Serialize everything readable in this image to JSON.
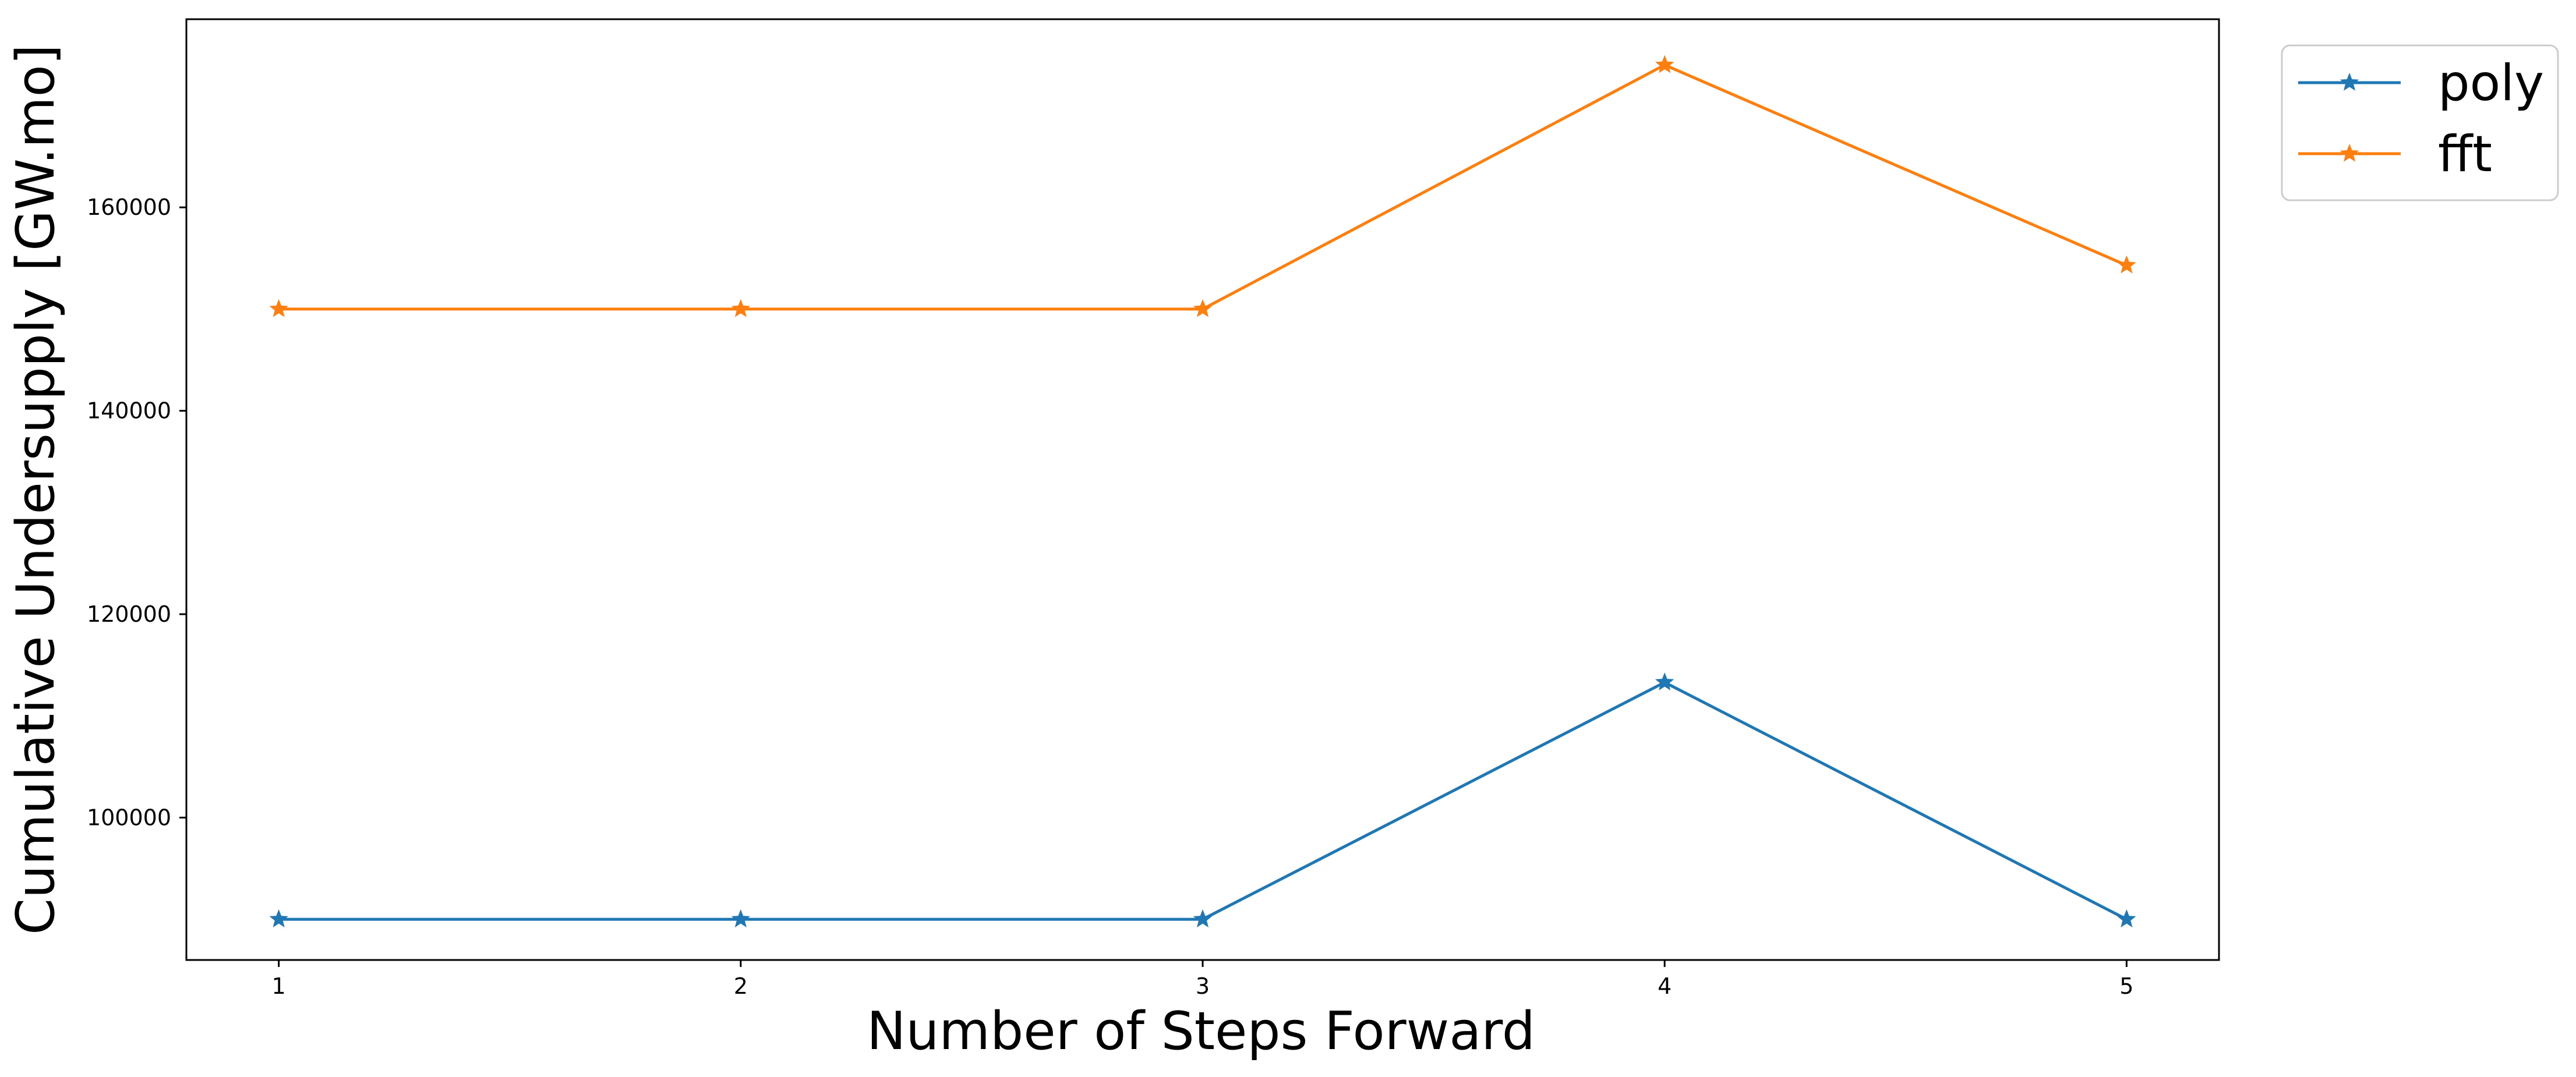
{
  "chart_data": {
    "type": "line",
    "x": [
      1,
      2,
      3,
      4,
      5
    ],
    "xlabel": "Number of Steps Forward",
    "ylabel": "Cumulative Undersupply [GW.mo]",
    "xlim": [
      0.8,
      5.2
    ],
    "ylim": [
      86000,
      178500
    ],
    "xticks": [
      1,
      2,
      3,
      4,
      5
    ],
    "yticks": [
      100000,
      120000,
      140000,
      160000
    ],
    "ytick_labels": [
      "100000",
      "120000",
      "140000",
      "160000"
    ],
    "xtick_labels": [
      "1",
      "2",
      "3",
      "4",
      "5"
    ],
    "grid": false,
    "legend_position": "outside top-right",
    "marker": "star",
    "series": [
      {
        "name": "poly",
        "color": "#1f77b4",
        "values": [
          90000,
          90000,
          90000,
          113300,
          90000
        ]
      },
      {
        "name": "fft",
        "color": "#ff7f0e",
        "values": [
          150000,
          150000,
          150000,
          174000,
          154300
        ]
      }
    ]
  }
}
